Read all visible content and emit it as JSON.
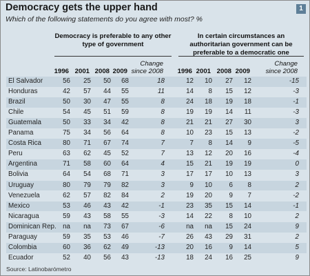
{
  "badge": "1",
  "chart_data": {
    "type": "table",
    "title": "Democracy gets the upper hand",
    "subtitle": "Which of the following statements do you agree with most? %",
    "groups": [
      {
        "label": "Democracy is preferable to any other type of government",
        "columns": [
          "1996",
          "2001",
          "2008",
          "2009",
          "Change since 2008"
        ]
      },
      {
        "label": "In certain circumstances an authoritarian government can be preferable to a democratic one",
        "columns": [
          "1996",
          "2001",
          "2008",
          "2009",
          "Change since 2008"
        ]
      }
    ],
    "rows": [
      {
        "country": "El Salvador",
        "democracy": [
          "56",
          "25",
          "50",
          "68",
          "18"
        ],
        "authoritarian": [
          "12",
          "10",
          "27",
          "12",
          "-15"
        ]
      },
      {
        "country": "Honduras",
        "democracy": [
          "42",
          "57",
          "44",
          "55",
          "11"
        ],
        "authoritarian": [
          "14",
          "8",
          "15",
          "12",
          "-3"
        ]
      },
      {
        "country": "Brazil",
        "democracy": [
          "50",
          "30",
          "47",
          "55",
          "8"
        ],
        "authoritarian": [
          "24",
          "18",
          "19",
          "18",
          "-1"
        ]
      },
      {
        "country": "Chile",
        "democracy": [
          "54",
          "45",
          "51",
          "59",
          "8"
        ],
        "authoritarian": [
          "19",
          "19",
          "14",
          "11",
          "-3"
        ]
      },
      {
        "country": "Guatemala",
        "democracy": [
          "50",
          "33",
          "34",
          "42",
          "8"
        ],
        "authoritarian": [
          "21",
          "21",
          "27",
          "30",
          "3"
        ]
      },
      {
        "country": "Panama",
        "democracy": [
          "75",
          "34",
          "56",
          "64",
          "8"
        ],
        "authoritarian": [
          "10",
          "23",
          "15",
          "13",
          "-2"
        ]
      },
      {
        "country": "Costa Rica",
        "democracy": [
          "80",
          "71",
          "67",
          "74",
          "7"
        ],
        "authoritarian": [
          "7",
          "8",
          "14",
          "9",
          "-5"
        ]
      },
      {
        "country": "Peru",
        "democracy": [
          "63",
          "62",
          "45",
          "52",
          "7"
        ],
        "authoritarian": [
          "13",
          "12",
          "20",
          "16",
          "-4"
        ]
      },
      {
        "country": "Argentina",
        "democracy": [
          "71",
          "58",
          "60",
          "64",
          "4"
        ],
        "authoritarian": [
          "15",
          "21",
          "19",
          "19",
          "0"
        ]
      },
      {
        "country": "Bolivia",
        "democracy": [
          "64",
          "54",
          "68",
          "71",
          "3"
        ],
        "authoritarian": [
          "17",
          "17",
          "10",
          "13",
          "3"
        ]
      },
      {
        "country": "Uruguay",
        "democracy": [
          "80",
          "79",
          "79",
          "82",
          "3"
        ],
        "authoritarian": [
          "9",
          "10",
          "6",
          "8",
          "2"
        ]
      },
      {
        "country": "Venezuela",
        "democracy": [
          "62",
          "57",
          "82",
          "84",
          "2"
        ],
        "authoritarian": [
          "19",
          "20",
          "9",
          "7",
          "-2"
        ]
      },
      {
        "country": "Mexico",
        "democracy": [
          "53",
          "46",
          "43",
          "42",
          "-1"
        ],
        "authoritarian": [
          "23",
          "35",
          "15",
          "14",
          "-1"
        ]
      },
      {
        "country": "Nicaragua",
        "democracy": [
          "59",
          "43",
          "58",
          "55",
          "-3"
        ],
        "authoritarian": [
          "14",
          "22",
          "8",
          "10",
          "2"
        ]
      },
      {
        "country": "Dominican Rep.",
        "democracy": [
          "na",
          "na",
          "73",
          "67",
          "-6"
        ],
        "authoritarian": [
          "na",
          "na",
          "15",
          "24",
          "9"
        ]
      },
      {
        "country": "Paraguay",
        "democracy": [
          "59",
          "35",
          "53",
          "46",
          "-7"
        ],
        "authoritarian": [
          "26",
          "43",
          "29",
          "31",
          "2"
        ]
      },
      {
        "country": "Colombia",
        "democracy": [
          "60",
          "36",
          "62",
          "49",
          "-13"
        ],
        "authoritarian": [
          "20",
          "16",
          "9",
          "14",
          "5"
        ]
      },
      {
        "country": "Ecuador",
        "democracy": [
          "52",
          "40",
          "56",
          "43",
          "-13"
        ],
        "authoritarian": [
          "18",
          "24",
          "16",
          "25",
          "9"
        ]
      }
    ],
    "source": "Source: Latinobarómetro"
  }
}
